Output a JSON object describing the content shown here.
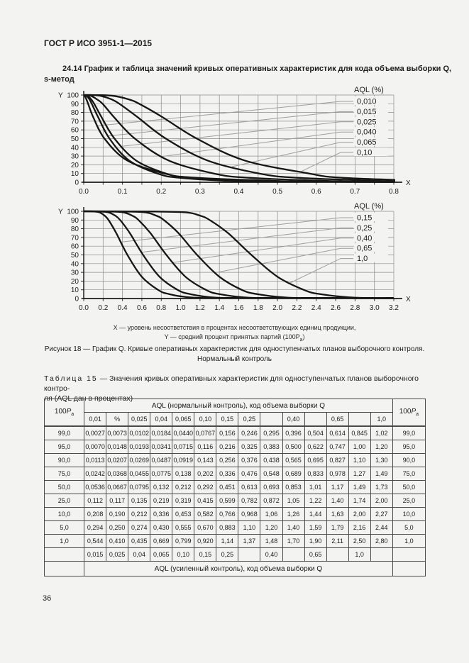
{
  "colors": {
    "page_bg": "#f3f3f1",
    "ink": "#1c1c1c",
    "grid": "#8c8c8c",
    "curve": "#161616",
    "leader": "#9e9e9e",
    "table_border": "#4a4a4a"
  },
  "page": {
    "header_title": "ГОСТ Р ИСО 3951-1—2015",
    "clause_line1": "24.14 График и таблица значений кривых оперативных характеристик для кода объема выборки Q,",
    "clause_line2": "s-метод",
    "page_number": "36"
  },
  "figure": {
    "note_x": "X — уровень несоответствия в процентах несоответствующих единиц продукции,",
    "note_y_main": "Y — средний процент принятых партий (100P",
    "note_y_sub": "a",
    "note_y_close": ")",
    "caption_line1": "Рисунок 18 — График Q. Кривые оперативных характеристик для одноступенчатых планов выборочного контроля.",
    "caption_line2": "Нормальный контроль"
  },
  "chart_data": [
    {
      "type": "line",
      "title": "OC curves, small AQL, normal inspection, sample size code Q",
      "xlabel": "X",
      "ylabel": "Y",
      "xlim": [
        0,
        0.8
      ],
      "x_tick_step": 0.1,
      "grid_x_step": 0.05,
      "ylim": [
        0,
        100
      ],
      "y_tick_step": 10,
      "x_ticks": [
        "0.0",
        "0.1",
        "0.2",
        "0.3",
        "0.4",
        "0.5",
        "0.6",
        "0.7",
        "0.8"
      ],
      "grid": true,
      "legend_position": "right",
      "legend_title": "AQL (%)",
      "pa_levels": [
        99,
        95,
        90,
        75,
        50,
        25,
        10,
        5,
        1
      ],
      "series": [
        {
          "name": "0,010",
          "x_at_pa": [
            0.0027,
            0.007,
            0.0113,
            0.0242,
            0.0536,
            0.112,
            0.208,
            0.294,
            0.544
          ]
        },
        {
          "name": "0,015",
          "x_at_pa": [
            0.0073,
            0.0148,
            0.0207,
            0.0368,
            0.0667,
            0.117,
            0.19,
            0.25,
            0.41
          ]
        },
        {
          "name": "0,025",
          "x_at_pa": [
            0.0102,
            0.0193,
            0.0269,
            0.0455,
            0.0795,
            0.135,
            0.212,
            0.274,
            0.435
          ]
        },
        {
          "name": "0,040",
          "x_at_pa": [
            0.0184,
            0.0341,
            0.0487,
            0.0775,
            0.132,
            0.219,
            0.336,
            0.43,
            0.669
          ]
        },
        {
          "name": "0,065",
          "x_at_pa": [
            0.044,
            0.0715,
            0.0919,
            0.138,
            0.212,
            0.319,
            0.453,
            0.555,
            0.799
          ]
        },
        {
          "name": "0,10",
          "x_at_pa": [
            0.0767,
            0.116,
            0.143,
            0.202,
            0.292,
            0.415,
            0.582,
            0.67,
            0.92
          ]
        }
      ]
    },
    {
      "type": "line",
      "title": "OC curves, larger AQL, normal inspection, sample size code Q",
      "xlabel": "X",
      "ylabel": "Y",
      "xlim": [
        0,
        3.2
      ],
      "x_tick_step": 0.2,
      "grid_x_step": 0.2,
      "ylim": [
        0,
        100
      ],
      "y_tick_step": 10,
      "x_ticks": [
        "0.0",
        "0.2",
        "0.4",
        "0.6",
        "0.8",
        "1.0",
        "1.2",
        "1.4",
        "1.6",
        "1.8",
        "2.0",
        "2.2",
        "2.4",
        "2.6",
        "2.8",
        "3.0",
        "3.2"
      ],
      "grid": true,
      "legend_position": "right",
      "legend_title": "AQL (%)",
      "pa_levels": [
        99,
        95,
        90,
        75,
        50,
        25,
        10,
        5,
        1
      ],
      "series": [
        {
          "name": "0,15",
          "x_at_pa": [
            0.156,
            0.216,
            0.256,
            0.336,
            0.451,
            0.599,
            0.766,
            0.883,
            1.14
          ]
        },
        {
          "name": "0,25",
          "x_at_pa": [
            0.246,
            0.325,
            0.376,
            0.476,
            0.613,
            0.782,
            0.968,
            1.1,
            1.37
          ]
        },
        {
          "name": "0,40",
          "x_at_pa": [
            0.396,
            0.5,
            0.565,
            0.689,
            0.853,
            1.05,
            1.26,
            1.4,
            1.7
          ]
        },
        {
          "name": "0,65",
          "x_at_pa": [
            0.614,
            0.747,
            0.827,
            0.978,
            1.17,
            1.4,
            1.63,
            1.79,
            2.11
          ]
        },
        {
          "name": "1,0",
          "x_at_pa": [
            1.02,
            1.2,
            1.3,
            1.49,
            1.73,
            2.0,
            2.27,
            2.44,
            2.8
          ]
        }
      ]
    }
  ],
  "table": {
    "title_label": "Таблица 15",
    "title_rest1": "— Значения кривых оперативных характеристик для одноступенчатых планов выборочного контро-",
    "title_line2": "ля (AQL дан в процентах)",
    "corner_label_base": "100",
    "corner_label_p": "P",
    "corner_label_sub": "a",
    "header_normal": "AQL (нормальный контроль), код объема выборки Q",
    "aql_normal": [
      "0,01",
      "%",
      "0,025",
      "0,04",
      "0,065",
      "0,10",
      "0,15",
      "0,25",
      "",
      "0,40",
      "",
      "0,65",
      "",
      "1,0"
    ],
    "rows": [
      {
        "pa": "99,0",
        "values": [
          "0,0027",
          "0,0073",
          "0,0102",
          "0,0184",
          "0,0440",
          "0,0767",
          "0,156",
          "0,246",
          "0,295",
          "0,396",
          "0,504",
          "0,614",
          "0,845",
          "1,02"
        ]
      },
      {
        "pa": "95,0",
        "values": [
          "0,0070",
          "0,0148",
          "0,0193",
          "0,0341",
          "0,0715",
          "0,116",
          "0,216",
          "0,325",
          "0,383",
          "0,500",
          "0,622",
          "0,747",
          "1,00",
          "1,20"
        ]
      },
      {
        "pa": "90,0",
        "values": [
          "0,0113",
          "0,0207",
          "0,0269",
          "0,0487",
          "0,0919",
          "0,143",
          "0,256",
          "0,376",
          "0,438",
          "0,565",
          "0,695",
          "0,827",
          "1,10",
          "1,30"
        ]
      },
      {
        "pa": "75,0",
        "values": [
          "0,0242",
          "0,0368",
          "0,0455",
          "0,0775",
          "0,138",
          "0,202",
          "0,336",
          "0,476",
          "0,548",
          "0,689",
          "0,833",
          "0,978",
          "1,27",
          "1,49"
        ]
      },
      {
        "pa": "50,0",
        "values": [
          "0,0536",
          "0,0667",
          "0,0795",
          "0,132",
          "0,212",
          "0,292",
          "0,451",
          "0,613",
          "0,693",
          "0,853",
          "1,01",
          "1,17",
          "1,49",
          "1,73"
        ]
      },
      {
        "pa": "25,0",
        "values": [
          "0,112",
          "0,117",
          "0,135",
          "0,219",
          "0,319",
          "0,415",
          "0,599",
          "0,782",
          "0,872",
          "1,05",
          "1,22",
          "1,40",
          "1,74",
          "2,00"
        ]
      },
      {
        "pa": "10,0",
        "values": [
          "0,208",
          "0,190",
          "0,212",
          "0,336",
          "0,453",
          "0,582",
          "0,766",
          "0,968",
          "1,06",
          "1,26",
          "1,44",
          "1,63",
          "2,00",
          "2,27"
        ]
      },
      {
        "pa": "5,0",
        "values": [
          "0,294",
          "0,250",
          "0,274",
          "0,430",
          "0,555",
          "0,670",
          "0,883",
          "1,10",
          "1,20",
          "1,40",
          "1,59",
          "1,79",
          "2,16",
          "2,44"
        ]
      },
      {
        "pa": "1,0",
        "values": [
          "0,544",
          "0,410",
          "0,435",
          "0,669",
          "0,799",
          "0,920",
          "1,14",
          "1,37",
          "1,48",
          "1,70",
          "1,90",
          "2,11",
          "2,50",
          "2,80"
        ]
      }
    ],
    "aql_tightened": [
      "0,015",
      "0,025",
      "0,04",
      "0,065",
      "0,10",
      "0,15",
      "0,25",
      "",
      "0,40",
      "",
      "0,65",
      "",
      "1,0",
      ""
    ],
    "footer_tightened": "AQL (усиленный контроль), код объема выборки Q"
  }
}
